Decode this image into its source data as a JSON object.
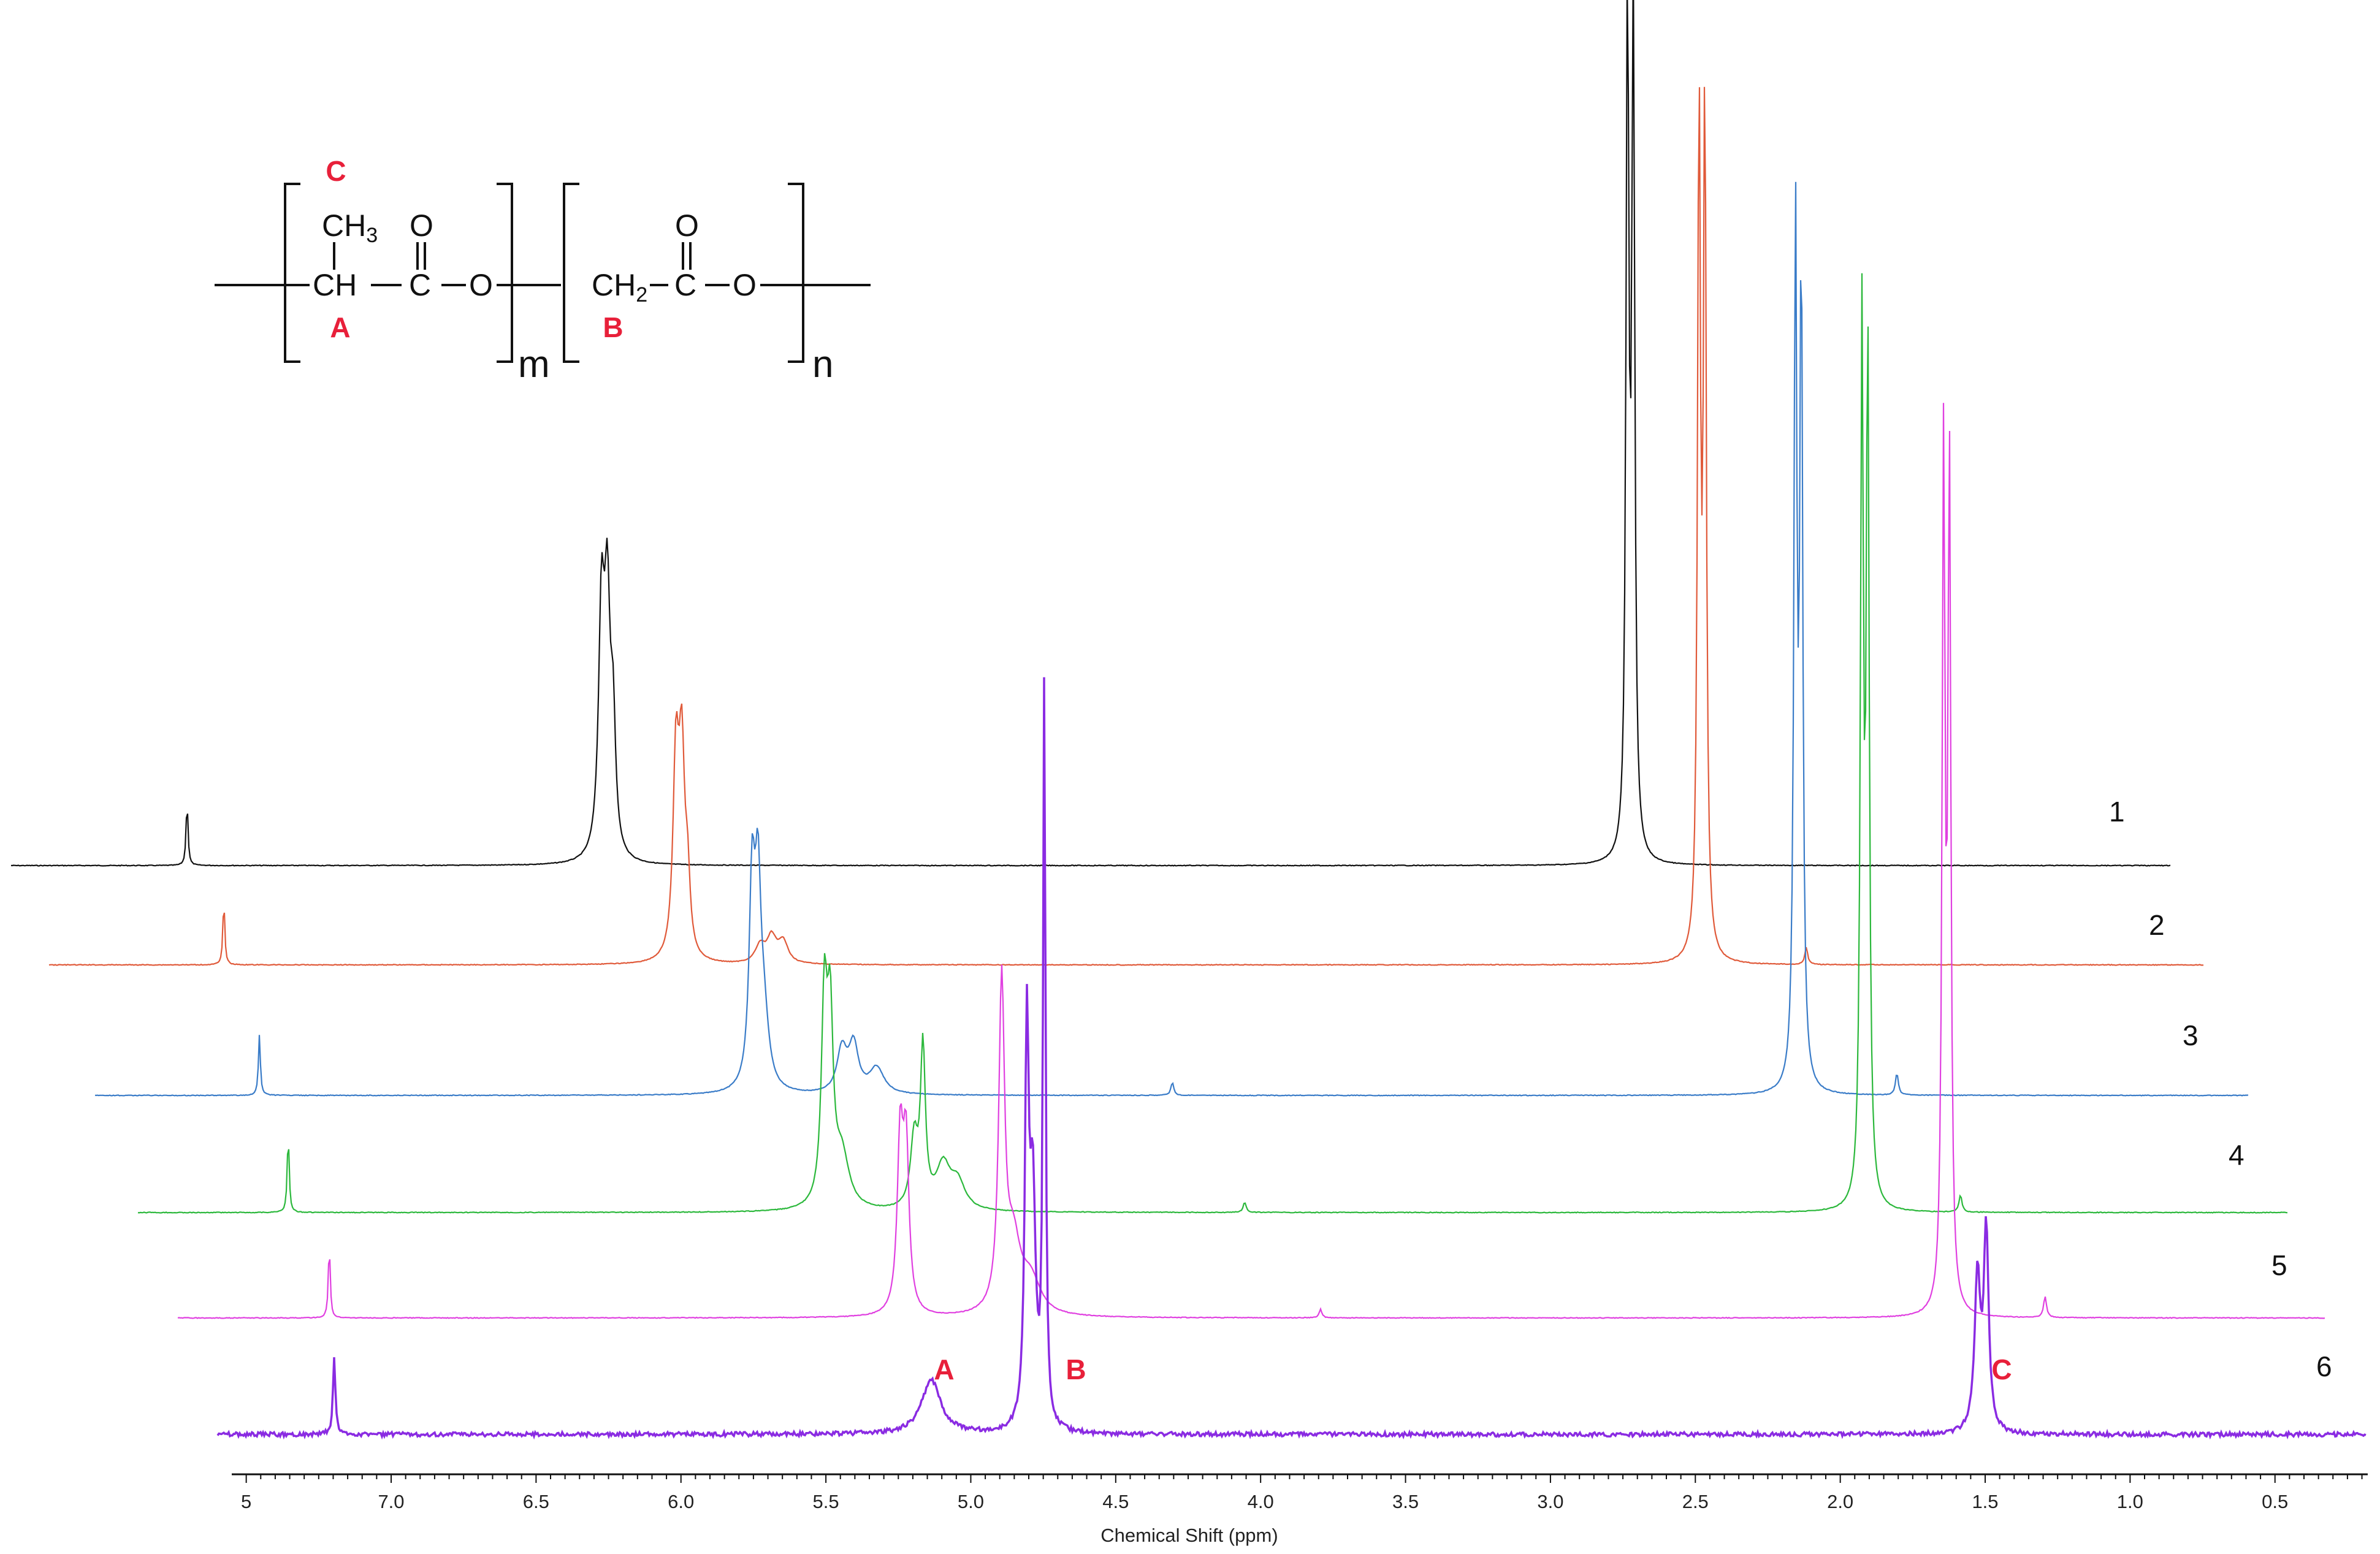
{
  "chart_data": {
    "type": "line",
    "title": "",
    "xlabel": "Chemical Shift (ppm)",
    "ylabel": "",
    "xlim": [
      7.55,
      0.18
    ],
    "x_reversed": true,
    "ticks": [
      "7.0",
      "6.5",
      "6.0",
      "5.5",
      "5.0",
      "4.5",
      "4.0",
      "3.5",
      "3.0",
      "2.5",
      "2.0",
      "1.5",
      "1.0",
      "0.5"
    ],
    "edge_tick_label": "5",
    "grid": false,
    "series": [
      {
        "name": "1",
        "color": "#111111",
        "baseline_ppm_offset": -1.52,
        "peaks": [
          {
            "ppm": 7.26,
            "height": 0.075,
            "width": 0.004
          },
          {
            "ppm": 5.83,
            "height": 0.28,
            "width": 0.012
          },
          {
            "ppm": 5.81,
            "height": 0.28,
            "width": 0.012
          },
          {
            "ppm": 5.79,
            "height": 0.14,
            "width": 0.01
          },
          {
            "ppm": 2.29,
            "height": 1.0,
            "width": 0.006
          },
          {
            "ppm": 2.27,
            "height": 1.0,
            "width": 0.006
          }
        ]
      },
      {
        "name": "2",
        "color": "#e05a3a",
        "baseline_ppm_offset": -1.36,
        "peaks": [
          {
            "ppm": 7.26,
            "height": 0.075,
            "width": 0.004
          },
          {
            "ppm": 5.7,
            "height": 0.23,
            "width": 0.012
          },
          {
            "ppm": 5.68,
            "height": 0.23,
            "width": 0.012
          },
          {
            "ppm": 5.66,
            "height": 0.08,
            "width": 0.01
          },
          {
            "ppm": 5.41,
            "height": 0.02,
            "width": 0.02
          },
          {
            "ppm": 5.37,
            "height": 0.03,
            "width": 0.02
          },
          {
            "ppm": 5.33,
            "height": 0.025,
            "width": 0.02
          },
          {
            "ppm": 2.17,
            "height": 1.0,
            "width": 0.006
          },
          {
            "ppm": 2.15,
            "height": 1.0,
            "width": 0.006
          },
          {
            "ppm": 1.8,
            "height": 0.02,
            "width": 0.006
          }
        ]
      },
      {
        "name": "3",
        "color": "#3a7cc8",
        "baseline_ppm_offset": -1.2,
        "peaks": [
          {
            "ppm": 7.26,
            "height": 0.07,
            "width": 0.004
          },
          {
            "ppm": 5.56,
            "height": 0.23,
            "width": 0.012
          },
          {
            "ppm": 5.54,
            "height": 0.21,
            "width": 0.012
          },
          {
            "ppm": 5.52,
            "height": 0.08,
            "width": 0.02
          },
          {
            "ppm": 5.25,
            "height": 0.05,
            "width": 0.02
          },
          {
            "ppm": 5.21,
            "height": 0.055,
            "width": 0.02
          },
          {
            "ppm": 5.13,
            "height": 0.03,
            "width": 0.03
          },
          {
            "ppm": 4.11,
            "height": 0.015,
            "width": 0.006
          },
          {
            "ppm": 1.96,
            "height": 1.0,
            "width": 0.006
          },
          {
            "ppm": 1.94,
            "height": 0.95,
            "width": 0.006
          },
          {
            "ppm": 1.61,
            "height": 0.025,
            "width": 0.006
          }
        ]
      },
      {
        "name": "4",
        "color": "#2cb83c",
        "baseline_ppm_offset": -1.04,
        "peaks": [
          {
            "ppm": 7.26,
            "height": 0.09,
            "width": 0.004
          },
          {
            "ppm": 5.41,
            "height": 0.23,
            "width": 0.012
          },
          {
            "ppm": 5.39,
            "height": 0.2,
            "width": 0.012
          },
          {
            "ppm": 5.35,
            "height": 0.06,
            "width": 0.03
          },
          {
            "ppm": 5.1,
            "height": 0.08,
            "width": 0.015
          },
          {
            "ppm": 5.07,
            "height": 0.18,
            "width": 0.01
          },
          {
            "ppm": 5.0,
            "height": 0.05,
            "width": 0.03
          },
          {
            "ppm": 4.95,
            "height": 0.03,
            "width": 0.03
          },
          {
            "ppm": 3.96,
            "height": 0.012,
            "width": 0.006
          },
          {
            "ppm": 1.83,
            "height": 1.0,
            "width": 0.006
          },
          {
            "ppm": 1.81,
            "height": 0.98,
            "width": 0.006
          },
          {
            "ppm": 1.49,
            "height": 0.02,
            "width": 0.006
          }
        ]
      },
      {
        "name": "5",
        "color": "#e040e0",
        "baseline_ppm_offset": -0.88,
        "peaks": [
          {
            "ppm": 7.26,
            "height": 0.085,
            "width": 0.004
          },
          {
            "ppm": 5.29,
            "height": 0.2,
            "width": 0.012
          },
          {
            "ppm": 5.27,
            "height": 0.19,
            "width": 0.012
          },
          {
            "ppm": 4.94,
            "height": 0.38,
            "width": 0.012
          },
          {
            "ppm": 4.9,
            "height": 0.08,
            "width": 0.03
          },
          {
            "ppm": 4.84,
            "height": 0.04,
            "width": 0.04
          },
          {
            "ppm": 3.84,
            "height": 0.01,
            "width": 0.006
          },
          {
            "ppm": 1.69,
            "height": 1.0,
            "width": 0.006
          },
          {
            "ppm": 1.67,
            "height": 0.98,
            "width": 0.006
          },
          {
            "ppm": 1.34,
            "height": 0.025,
            "width": 0.006
          }
        ]
      },
      {
        "name": "6",
        "color": "#8a2be2",
        "baseline_ppm_offset": -0.8,
        "peaks": [
          {
            "ppm": 7.26,
            "height": 0.1,
            "width": 0.005
          },
          {
            "ppm": 5.2,
            "height": 0.07,
            "width": 0.04
          },
          {
            "ppm": 4.87,
            "height": 0.5,
            "width": 0.008
          },
          {
            "ppm": 4.85,
            "height": 0.3,
            "width": 0.012
          },
          {
            "ppm": 4.81,
            "height": 0.96,
            "width": 0.005
          },
          {
            "ppm": 1.59,
            "height": 0.2,
            "width": 0.012
          },
          {
            "ppm": 1.56,
            "height": 0.26,
            "width": 0.01
          }
        ]
      }
    ],
    "annotations": [
      {
        "text": "A",
        "color": "#e8203a",
        "near_ppm": 5.04,
        "trace": "6"
      },
      {
        "text": "B",
        "color": "#e8203a",
        "near_ppm": 4.62,
        "trace": "6"
      },
      {
        "text": "C",
        "color": "#e8203a",
        "near_ppm": 1.43,
        "trace": "6"
      }
    ]
  },
  "structure": {
    "unit_a": {
      "methyl": "CH",
      "methyl_sub": "3",
      "methine": "CH",
      "carbonyl_c": "C",
      "carbonyl_o": "O",
      "ester_o": "O",
      "repeat": "m",
      "label_a": "A",
      "label_c": "C"
    },
    "unit_b": {
      "methylene": "CH",
      "methylene_sub": "2",
      "carbonyl_c": "C",
      "carbonyl_o": "O",
      "ester_o": "O",
      "repeat": "n",
      "label_b": "B"
    },
    "label_color": "#e8203a"
  }
}
